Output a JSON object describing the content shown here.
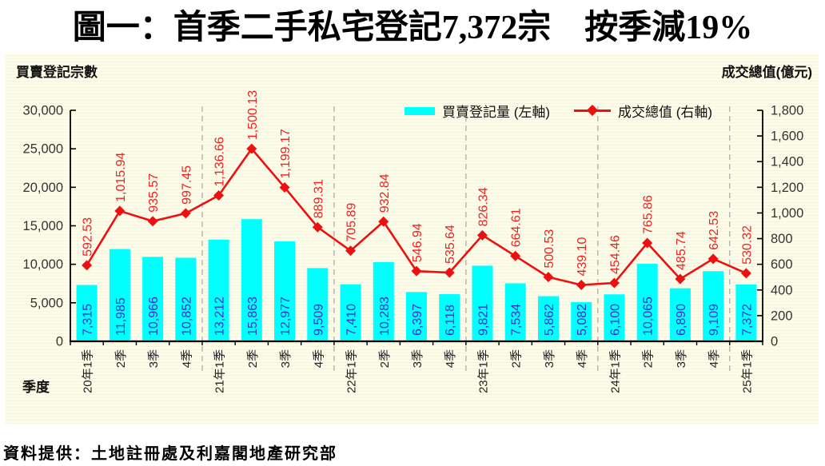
{
  "title": "圖一：首季二手私宅登記7,372宗　按季減19%",
  "left_axis_title": "買賣登記宗數",
  "right_axis_title": "成交總值(億元)",
  "x_axis_title": "季度",
  "footer": "資料提供：土地註冊處及利嘉閣地產研究部",
  "legend": {
    "bar_label": "買賣登記量 (左軸)",
    "line_label": "成交總值 (右軸)"
  },
  "colors": {
    "bar": "#00FFFF",
    "bar_label": "#3333CC",
    "line": "#EE1010",
    "line_label": "#EE2222",
    "axis": "#000000",
    "tick_label": "#333333",
    "category_label": "#222222",
    "separator": "#B3B3B3",
    "panel_bg": "#FDFDE9"
  },
  "chart_data": {
    "type": "bar+line",
    "title": "圖一：首季二手私宅登記7,372宗　按季減19%",
    "xlabel": "季度",
    "ylabel_left": "買賣登記宗數",
    "ylabel_right": "成交總值(億元)",
    "legend_position": "top",
    "grid": "dashed vertical year separators only",
    "categories": [
      "20年1季",
      "2季",
      "3季",
      "4季",
      "21年1季",
      "2季",
      "3季",
      "4季",
      "22年1季",
      "2季",
      "3季",
      "4季",
      "23年1季",
      "2季",
      "3季",
      "4季",
      "24年1季",
      "2季",
      "3季",
      "4季",
      "25年1季"
    ],
    "series": [
      {
        "name": "買賣登記量 (左軸)",
        "type": "bar",
        "axis": "left",
        "values": [
          7315,
          11985,
          10966,
          10852,
          13212,
          15863,
          12977,
          9509,
          7410,
          10283,
          6397,
          6118,
          9821,
          7534,
          5862,
          5082,
          6100,
          10065,
          6890,
          9109,
          7372
        ],
        "labels": [
          "7,315",
          "11,985",
          "10,966",
          "10,852",
          "13,212",
          "15,863",
          "12,977",
          "9,509",
          "7,410",
          "10,283",
          "6,397",
          "6,118",
          "9,821",
          "7,534",
          "5,862",
          "5,082",
          "6,100",
          "10,065",
          "6,890",
          "9,109",
          "7,372"
        ]
      },
      {
        "name": "成交總值 (右軸)",
        "type": "line",
        "axis": "right",
        "marker": "diamond",
        "values": [
          592.53,
          1015.94,
          935.57,
          997.45,
          1136.66,
          1500.13,
          1199.17,
          889.31,
          705.89,
          932.84,
          546.94,
          535.64,
          826.34,
          664.61,
          500.53,
          439.1,
          454.46,
          765.86,
          485.74,
          642.53,
          530.32
        ],
        "labels": [
          "592.53",
          "1,015.94",
          "935.57",
          "997.45",
          "1,136.66",
          "1,500.13",
          "1,199.17",
          "889.31",
          "705.89",
          "932.84",
          "546.94",
          "535.64",
          "826.34",
          "664.61",
          "500.53",
          "439.10",
          "454.46",
          "765.86",
          "485.74",
          "642.53",
          "530.32"
        ]
      }
    ],
    "left_axis": {
      "min": 0,
      "max": 30000,
      "step": 5000,
      "tick_labels": [
        "0",
        "5,000",
        "10,000",
        "15,000",
        "20,000",
        "25,000",
        "30,000"
      ]
    },
    "right_axis": {
      "min": 0,
      "max": 1800,
      "step": 200,
      "tick_labels": [
        "0",
        "200",
        "400",
        "600",
        "800",
        "1,000",
        "1,200",
        "1,400",
        "1,600",
        "1,800"
      ]
    },
    "year_separators_after": [
      3,
      7,
      11,
      15,
      19
    ]
  }
}
